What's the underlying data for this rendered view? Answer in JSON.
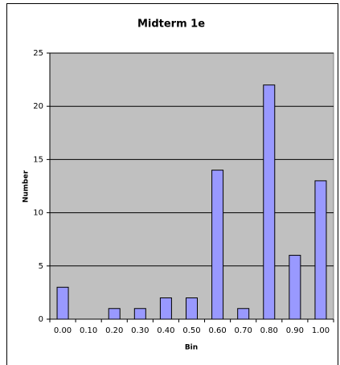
{
  "chart_data": {
    "type": "bar",
    "title": "Midterm 1e",
    "x_label": "Bin",
    "y_label": "Number",
    "categories": [
      "0.00",
      "0.10",
      "0.20",
      "0.30",
      "0.40",
      "0.50",
      "0.60",
      "0.70",
      "0.80",
      "0.90",
      "1.00"
    ],
    "values": [
      3,
      0,
      1,
      1,
      2,
      2,
      14,
      1,
      22,
      6,
      13
    ],
    "color": "#9999ff",
    "ylim": [
      0,
      25
    ],
    "yticks": [
      0,
      5,
      10,
      15,
      20,
      25
    ],
    "grid": true
  }
}
